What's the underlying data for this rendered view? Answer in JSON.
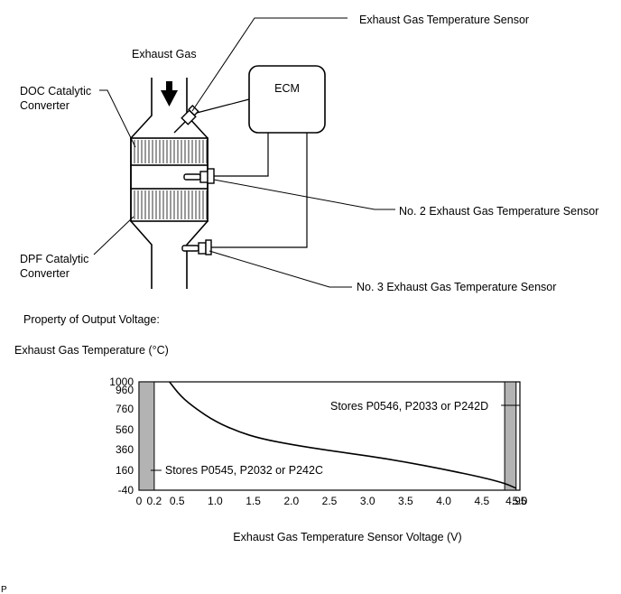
{
  "labels": {
    "exhaust_gas": "Exhaust Gas",
    "doc_line1": "DOC Catalytic",
    "doc_line2": "Converter",
    "dpf_line1": "DPF Catalytic",
    "dpf_line2": "Converter",
    "ecm": "ECM",
    "sensor_1": "Exhaust Gas Temperature Sensor",
    "sensor_2": "No. 2 Exhaust Gas Temperature Sensor",
    "sensor_3": "No. 3 Exhaust Gas Temperature Sensor",
    "property_title": "Property of Output Voltage:",
    "footer_mark": "P"
  },
  "chart_data": {
    "type": "line",
    "title": "",
    "ylabel": "Exhaust Gas Temperature (°C)",
    "xlabel": "Exhaust Gas Temperature Sensor Voltage (V)",
    "xlim": [
      0,
      5.0
    ],
    "ylim": [
      -40,
      1000
    ],
    "x_ticks": [
      "0",
      "0.2",
      "0.5",
      "1.0",
      "1.5",
      "2.0",
      "2.5",
      "3.0",
      "3.5",
      "4.0",
      "4.5",
      "4.95",
      "5.0"
    ],
    "y_ticks": [
      "-40",
      "160",
      "360",
      "560",
      "760",
      "960",
      "1000"
    ],
    "grid": false,
    "series": [
      {
        "x": [
          0.4,
          0.55,
          0.75,
          1.0,
          1.3,
          1.6,
          2.0,
          2.5,
          3.0,
          3.5,
          4.0,
          4.5,
          4.8,
          4.95
        ],
        "y": [
          1000,
          890,
          760,
          640,
          540,
          470,
          410,
          350,
          300,
          240,
          170,
          90,
          30,
          -20
        ]
      }
    ],
    "regions": [
      {
        "x_range": [
          0,
          0.2
        ],
        "label": "Stores P0545, P2032 or P242C"
      },
      {
        "x_range": [
          4.8,
          4.95
        ],
        "label": "Stores P0546, P2033 or P242D"
      }
    ]
  }
}
